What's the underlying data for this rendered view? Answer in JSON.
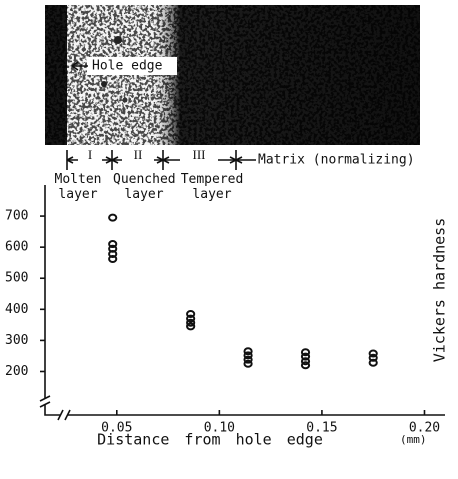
{
  "chart_data": {
    "type": "scatter",
    "annotation": "Hole edge",
    "zones": [
      {
        "numeral": "I",
        "label": "Molten layer"
      },
      {
        "numeral": "II",
        "label": "Quenched layer"
      },
      {
        "numeral": "III",
        "label": "Tempered layer"
      }
    ],
    "matrix_label": "Matrix (normalizing)",
    "x_label": "Distance from hole edge",
    "x_unit": "(mm)",
    "y_label": "Vickers hardness",
    "series": [
      {
        "color": "#111111",
        "x": [
          0.048,
          0.048,
          0.048,
          0.048,
          0.048,
          0.086,
          0.086,
          0.086,
          0.086,
          0.114,
          0.114,
          0.114,
          0.114,
          0.142,
          0.142,
          0.142,
          0.142,
          0.175,
          0.175,
          0.175
        ],
        "values": [
          695,
          610,
          595,
          578,
          562,
          385,
          370,
          357,
          345,
          265,
          252,
          238,
          225,
          262,
          248,
          233,
          220,
          258,
          244,
          228
        ]
      }
    ],
    "xlim": [
      0.015,
      0.21
    ],
    "ylim": [
      60,
      800
    ],
    "xticks": [
      0.05,
      {
        "value": 0.1,
        "label": "0.10"
      },
      0.15,
      {
        "value": 0.2,
        "label": "0.20"
      }
    ],
    "yticks": [
      200,
      300,
      400,
      500,
      600,
      700
    ]
  }
}
